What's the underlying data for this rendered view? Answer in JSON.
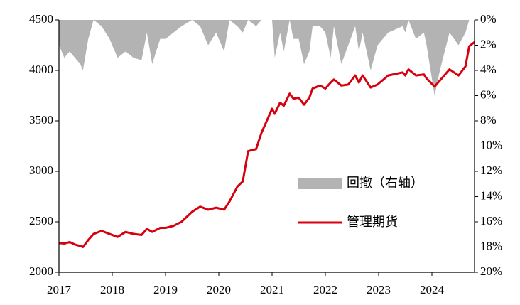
{
  "chart_data": {
    "type": "line",
    "x": [
      2017.0,
      2017.1,
      2017.2,
      2017.3,
      2017.4,
      2017.45,
      2017.55,
      2017.65,
      2017.8,
      2017.95,
      2018.1,
      2018.25,
      2018.4,
      2018.55,
      2018.65,
      2018.75,
      2018.9,
      2019.0,
      2019.15,
      2019.3,
      2019.5,
      2019.65,
      2019.8,
      2019.95,
      2020.1,
      2020.2,
      2020.35,
      2020.45,
      2020.55,
      2020.7,
      2020.8,
      2020.9,
      2021.0,
      2021.05,
      2021.15,
      2021.22,
      2021.33,
      2021.4,
      2021.5,
      2021.6,
      2021.7,
      2021.76,
      2021.9,
      2022.0,
      2022.1,
      2022.16,
      2022.3,
      2022.43,
      2022.56,
      2022.63,
      2022.7,
      2022.85,
      2022.98,
      2023.18,
      2023.45,
      2023.5,
      2023.56,
      2023.7,
      2023.85,
      2023.9,
      2024.05,
      2024.15,
      2024.33,
      2024.5,
      2024.63,
      2024.7,
      2024.8
    ],
    "series": [
      {
        "name": "回撤（右轴）",
        "type": "area",
        "axis": "y2",
        "color": "#b3b3b3",
        "values": [
          2.0,
          3.0,
          2.5,
          3.0,
          3.5,
          4.0,
          1.5,
          0,
          0.5,
          1.5,
          3.0,
          2.5,
          3.0,
          3.2,
          1.0,
          3.5,
          1.5,
          1.5,
          1.0,
          0.5,
          0,
          0.5,
          2.0,
          1.0,
          2.5,
          0,
          0.5,
          1.0,
          0,
          0.5,
          0,
          0,
          0,
          3.0,
          1.0,
          2.5,
          0,
          1.5,
          1.5,
          3.5,
          2.5,
          0.5,
          0.5,
          1.0,
          3.0,
          0.5,
          3.5,
          2.0,
          0.5,
          2.5,
          1.0,
          4.0,
          2.0,
          1.0,
          0.5,
          1.0,
          0,
          1.5,
          1.0,
          2.0,
          6.0,
          4.0,
          1.0,
          2.0,
          1.0,
          0,
          0
        ]
      },
      {
        "name": "管理期货",
        "type": "line",
        "color": "#d7000f",
        "values": [
          2290,
          2285,
          2300,
          2275,
          2260,
          2250,
          2320,
          2380,
          2410,
          2380,
          2350,
          2400,
          2380,
          2370,
          2430,
          2400,
          2440,
          2440,
          2460,
          2500,
          2600,
          2650,
          2620,
          2640,
          2620,
          2700,
          2850,
          2900,
          3200,
          3220,
          3380,
          3500,
          3620,
          3570,
          3680,
          3650,
          3770,
          3720,
          3730,
          3660,
          3730,
          3820,
          3850,
          3820,
          3880,
          3910,
          3850,
          3860,
          3950,
          3880,
          3950,
          3830,
          3860,
          3950,
          3980,
          3950,
          4010,
          3950,
          3960,
          3920,
          3840,
          3900,
          4010,
          3950,
          4040,
          4240,
          4280
        ]
      }
    ],
    "xlim": [
      2017,
      2024.8
    ],
    "xticks": [
      2017,
      2018,
      2019,
      2020,
      2021,
      2022,
      2023,
      2024
    ],
    "ylim": [
      2000,
      4500
    ],
    "yticks": [
      2000,
      2500,
      3000,
      3500,
      4000,
      4500
    ],
    "y2lim": [
      20,
      0
    ],
    "y2ticks": [
      {
        "value": 0,
        "label": "0%"
      },
      {
        "value": 2,
        "label": "2%"
      },
      {
        "value": 4,
        "label": "4%"
      },
      {
        "value": 6,
        "label": "6%"
      },
      {
        "value": 8,
        "label": "8%"
      },
      {
        "value": 10,
        "label": "10%"
      },
      {
        "value": 12,
        "label": "12%"
      },
      {
        "value": 14,
        "label": "14%"
      },
      {
        "value": 16,
        "label": "16%"
      },
      {
        "value": 18,
        "label": "18%"
      },
      {
        "value": 20,
        "label": "20%"
      }
    ]
  }
}
